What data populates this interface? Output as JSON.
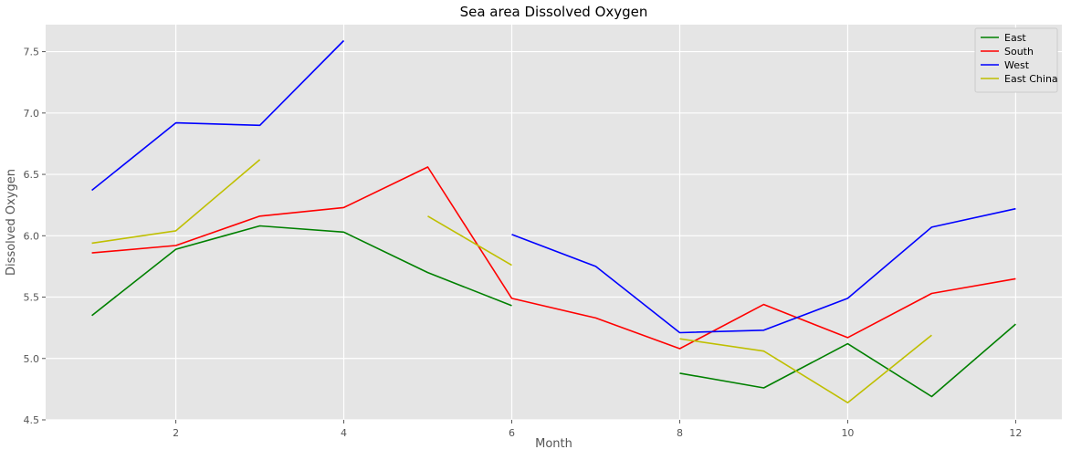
{
  "chart_data": {
    "type": "line",
    "title": "Sea area Dissolved Oxygen",
    "xlabel": "Month",
    "ylabel": "Dissolved Oxygen",
    "xlim": [
      0.45,
      12.55
    ],
    "ylim": [
      4.5,
      7.72
    ],
    "x_ticks": [
      2,
      4,
      6,
      8,
      10,
      12
    ],
    "y_ticks": [
      4.5,
      5.0,
      5.5,
      6.0,
      6.5,
      7.0,
      7.5
    ],
    "x_tick_labels": [
      "2",
      "4",
      "6",
      "8",
      "10",
      "12"
    ],
    "y_tick_labels": [
      "4.5",
      "5.0",
      "5.5",
      "6.0",
      "6.5",
      "7.0",
      "7.5"
    ],
    "grid": true,
    "background": "#e5e5e5",
    "grid_color": "#ffffff",
    "legend_position": "top-right",
    "series": [
      {
        "name": "East",
        "color": "#008000",
        "segments": [
          [
            [
              1,
              5.35
            ],
            [
              2,
              5.89
            ],
            [
              3,
              6.08
            ],
            [
              4,
              6.03
            ],
            [
              5,
              5.7
            ],
            [
              6,
              5.43
            ]
          ],
          [
            [
              8,
              4.88
            ],
            [
              9,
              4.76
            ],
            [
              10,
              5.12
            ],
            [
              11,
              4.69
            ],
            [
              12,
              5.28
            ]
          ]
        ]
      },
      {
        "name": "South",
        "color": "#ff0000",
        "segments": [
          [
            [
              1,
              5.86
            ],
            [
              2,
              5.92
            ],
            [
              3,
              6.16
            ],
            [
              4,
              6.23
            ],
            [
              5,
              6.56
            ],
            [
              6,
              5.49
            ],
            [
              7,
              5.33
            ],
            [
              8,
              5.08
            ],
            [
              9,
              5.44
            ],
            [
              10,
              5.17
            ],
            [
              11,
              5.53
            ],
            [
              12,
              5.65
            ]
          ]
        ]
      },
      {
        "name": "West",
        "color": "#0000ff",
        "segments": [
          [
            [
              1,
              6.37
            ],
            [
              2,
              6.92
            ],
            [
              3,
              6.9
            ],
            [
              4,
              7.59
            ]
          ],
          [
            [
              6,
              6.01
            ],
            [
              7,
              5.75
            ],
            [
              8,
              5.21
            ],
            [
              9,
              5.23
            ],
            [
              10,
              5.49
            ],
            [
              11,
              6.07
            ],
            [
              12,
              6.22
            ]
          ]
        ]
      },
      {
        "name": "East China",
        "color": "#bfbf00",
        "segments": [
          [
            [
              1,
              5.94
            ],
            [
              2,
              6.04
            ],
            [
              3,
              6.62
            ]
          ],
          [
            [
              5,
              6.16
            ],
            [
              6,
              5.76
            ]
          ],
          [
            [
              8,
              5.16
            ],
            [
              9,
              5.06
            ],
            [
              10,
              4.64
            ],
            [
              11,
              5.19
            ]
          ]
        ]
      }
    ]
  }
}
